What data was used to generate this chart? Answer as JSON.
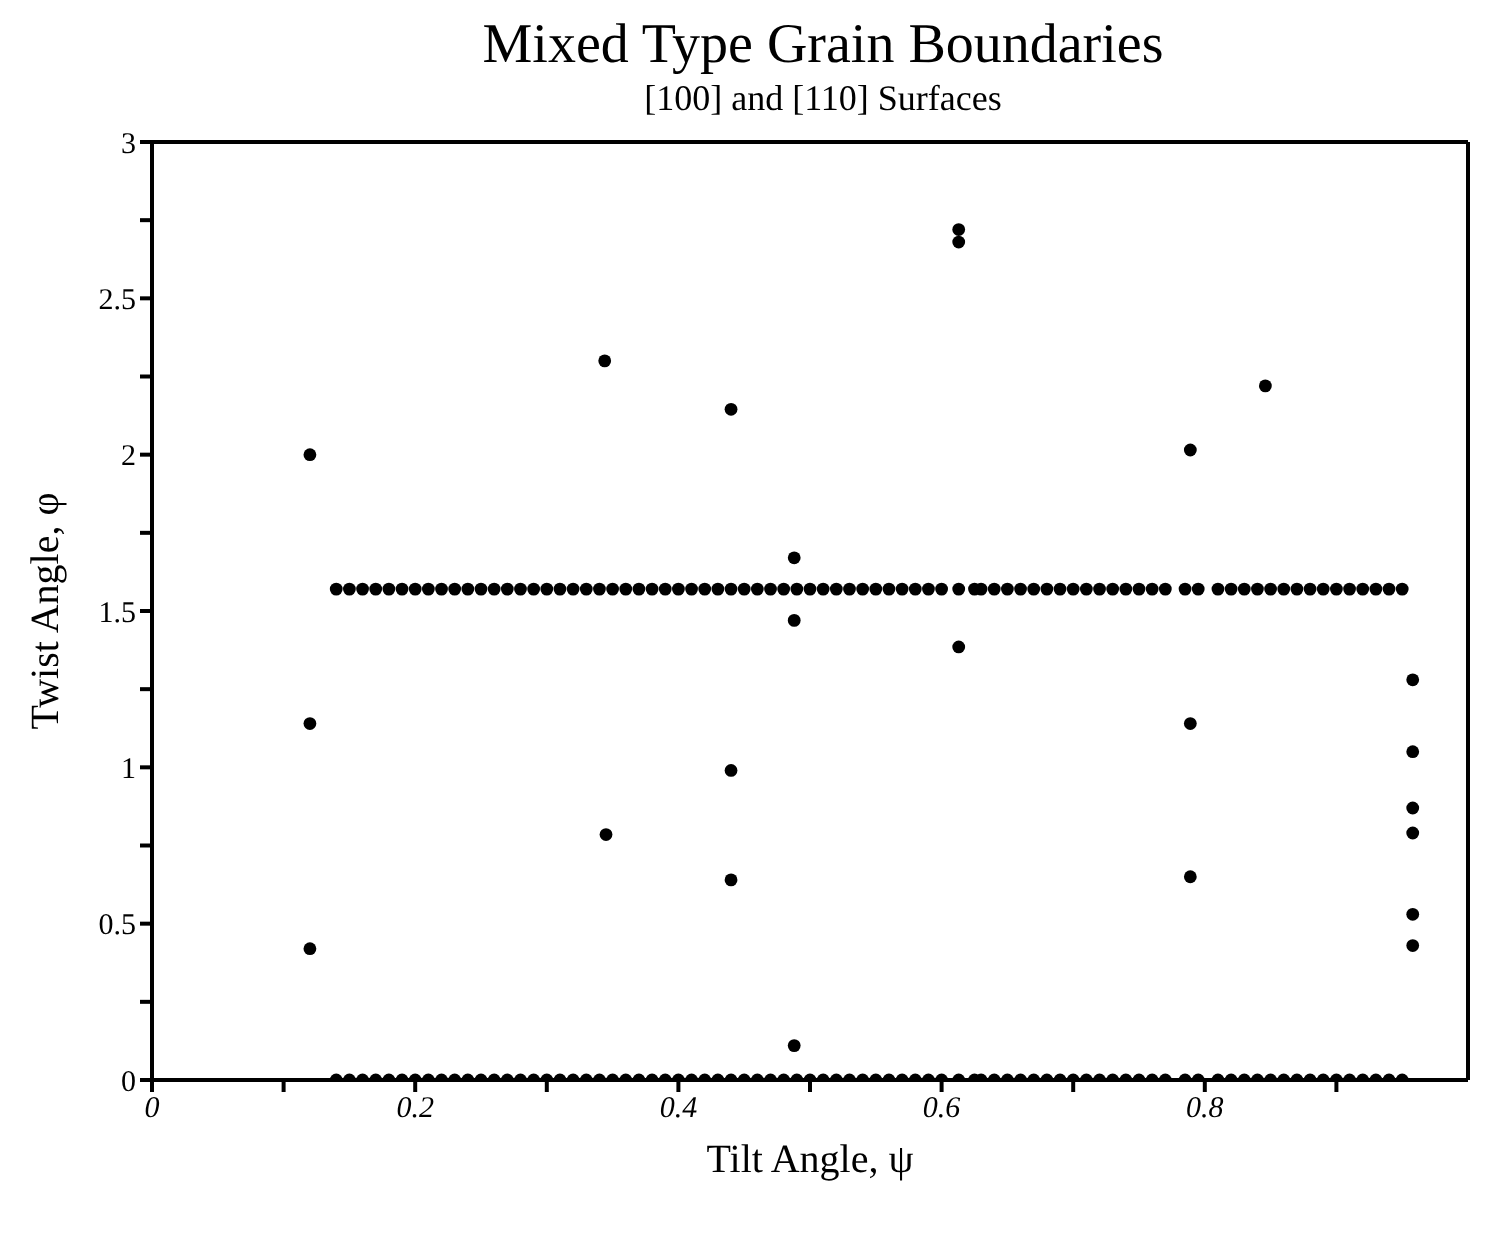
{
  "chart_data": {
    "type": "scatter",
    "title": "Mixed Type Grain Boundaries",
    "subtitle": "[100] and [110] Surfaces",
    "xlabel": "Tilt Angle, ψ",
    "ylabel": "Twist Angle, φ",
    "marker": "circle",
    "xlim": [
      0,
      1
    ],
    "ylim": [
      0,
      3
    ],
    "xticks": [
      0,
      {
        "value": 0.1,
        "label": null
      },
      0.2,
      {
        "value": 0.3,
        "label": null
      },
      0.4,
      {
        "value": 0.5,
        "label": null
      },
      0.6,
      {
        "value": 0.7,
        "label": null
      },
      0.8,
      {
        "value": 0.9,
        "label": null
      }
    ],
    "yticks": [
      0,
      {
        "value": 0.25,
        "label": null
      },
      0.5,
      {
        "value": 0.75,
        "label": null
      },
      1,
      {
        "value": 1.25,
        "label": null
      },
      1.5,
      {
        "value": 1.75,
        "label": null
      },
      2,
      {
        "value": 2.25,
        "label": null
      },
      2.5,
      {
        "value": 2.75,
        "label": null
      },
      3
    ],
    "series": [
      {
        "color": "#000000",
        "x": [
          0.12,
          0.12,
          0.12,
          0.344,
          0.345,
          0.44,
          0.44,
          0.44,
          0.488,
          0.488,
          0.488,
          0.613,
          0.613,
          0.613,
          0.789,
          0.789,
          0.789,
          0.846,
          0.958,
          0.958,
          0.958,
          0.958,
          0.958,
          0.958
        ],
        "values": [
          2.0,
          1.14,
          0.42,
          2.3,
          0.785,
          2.145,
          0.99,
          0.64,
          1.67,
          1.47,
          0.11,
          2.72,
          2.68,
          1.385,
          2.015,
          1.14,
          0.65,
          2.22,
          1.28,
          1.05,
          0.87,
          0.79,
          0.53,
          0.43
        ]
      },
      {
        "color": "#000000",
        "x": [
          0.14,
          0.15,
          0.16,
          0.17,
          0.18,
          0.19,
          0.2,
          0.21,
          0.22,
          0.23,
          0.24,
          0.25,
          0.26,
          0.27,
          0.28,
          0.29,
          0.3,
          0.31,
          0.32,
          0.33,
          0.34,
          0.35,
          0.36,
          0.37,
          0.38,
          0.39,
          0.4,
          0.41,
          0.42,
          0.43,
          0.44,
          0.45,
          0.46,
          0.47,
          0.48,
          0.49,
          0.5,
          0.51,
          0.52,
          0.53,
          0.54,
          0.55,
          0.56,
          0.57,
          0.58,
          0.59,
          0.6,
          0.613,
          0.625,
          0.63,
          0.64,
          0.65,
          0.66,
          0.67,
          0.68,
          0.69,
          0.7,
          0.71,
          0.72,
          0.73,
          0.74,
          0.75,
          0.76,
          0.77,
          0.785,
          0.795,
          0.81,
          0.82,
          0.83,
          0.84,
          0.85,
          0.86,
          0.87,
          0.88,
          0.89,
          0.9,
          0.91,
          0.92,
          0.93,
          0.94,
          0.95
        ],
        "values": [
          1.57,
          1.57,
          1.57,
          1.57,
          1.57,
          1.57,
          1.57,
          1.57,
          1.57,
          1.57,
          1.57,
          1.57,
          1.57,
          1.57,
          1.57,
          1.57,
          1.57,
          1.57,
          1.57,
          1.57,
          1.57,
          1.57,
          1.57,
          1.57,
          1.57,
          1.57,
          1.57,
          1.57,
          1.57,
          1.57,
          1.57,
          1.57,
          1.57,
          1.57,
          1.57,
          1.57,
          1.57,
          1.57,
          1.57,
          1.57,
          1.57,
          1.57,
          1.57,
          1.57,
          1.57,
          1.57,
          1.57,
          1.57,
          1.57,
          1.57,
          1.57,
          1.57,
          1.57,
          1.57,
          1.57,
          1.57,
          1.57,
          1.57,
          1.57,
          1.57,
          1.57,
          1.57,
          1.57,
          1.57,
          1.57,
          1.57,
          1.57,
          1.57,
          1.57,
          1.57,
          1.57,
          1.57,
          1.57,
          1.57,
          1.57,
          1.57,
          1.57,
          1.57,
          1.57,
          1.57,
          1.57
        ]
      },
      {
        "color": "#000000",
        "x": [
          0.14,
          0.15,
          0.16,
          0.17,
          0.18,
          0.19,
          0.2,
          0.21,
          0.22,
          0.23,
          0.24,
          0.25,
          0.26,
          0.27,
          0.28,
          0.29,
          0.3,
          0.31,
          0.32,
          0.33,
          0.34,
          0.35,
          0.36,
          0.37,
          0.38,
          0.39,
          0.4,
          0.41,
          0.42,
          0.43,
          0.44,
          0.45,
          0.46,
          0.47,
          0.48,
          0.49,
          0.5,
          0.51,
          0.52,
          0.53,
          0.54,
          0.55,
          0.56,
          0.57,
          0.58,
          0.59,
          0.6,
          0.613,
          0.625,
          0.63,
          0.64,
          0.65,
          0.66,
          0.67,
          0.68,
          0.69,
          0.7,
          0.71,
          0.72,
          0.73,
          0.74,
          0.75,
          0.76,
          0.77,
          0.785,
          0.795,
          0.81,
          0.82,
          0.83,
          0.84,
          0.85,
          0.86,
          0.87,
          0.88,
          0.89,
          0.9,
          0.91,
          0.92,
          0.93,
          0.94,
          0.95
        ],
        "values": [
          0,
          0,
          0,
          0,
          0,
          0,
          0,
          0,
          0,
          0,
          0,
          0,
          0,
          0,
          0,
          0,
          0,
          0,
          0,
          0,
          0,
          0,
          0,
          0,
          0,
          0,
          0,
          0,
          0,
          0,
          0,
          0,
          0,
          0,
          0,
          0,
          0,
          0,
          0,
          0,
          0,
          0,
          0,
          0,
          0,
          0,
          0,
          0,
          0,
          0,
          0,
          0,
          0,
          0,
          0,
          0,
          0,
          0,
          0,
          0,
          0,
          0,
          0,
          0,
          0,
          0,
          0,
          0,
          0,
          0,
          0,
          0,
          0,
          0,
          0,
          0,
          0,
          0,
          0,
          0,
          0
        ]
      }
    ]
  }
}
